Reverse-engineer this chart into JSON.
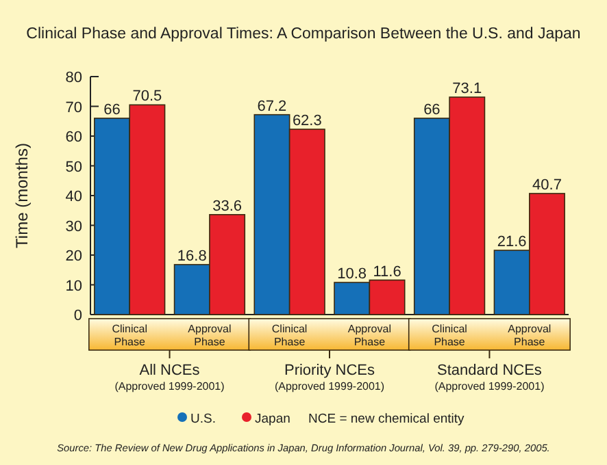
{
  "chart_data": {
    "type": "bar",
    "title": "Clinical Phase and Approval Times: A Comparison Between the U.S. and Japan",
    "ylabel": "Time (months)",
    "categories": [
      "Clinical Phase",
      "Approval Phase",
      "Clinical Phase",
      "Approval Phase",
      "Clinical Phase",
      "Approval Phase"
    ],
    "series": [
      {
        "name": "U.S.",
        "color": "#1570b8",
        "values": [
          66,
          16.8,
          67.2,
          10.8,
          66,
          21.6
        ]
      },
      {
        "name": "Japan",
        "color": "#e8212b",
        "values": [
          70.5,
          33.6,
          62.3,
          11.6,
          73.1,
          40.7
        ]
      }
    ],
    "ylim": [
      0,
      80
    ],
    "yticks": [
      0,
      10,
      20,
      30,
      40,
      50,
      60,
      70,
      80
    ],
    "data_labels": true,
    "legend": "bottom",
    "annotations": [
      "All NCEs",
      "(Approved 1999-2001)",
      "Priority NCEs",
      "(Approved 1999-2001)",
      "Standard NCEs",
      "(Approved 1999-2001)",
      "NCE = new chemical entity",
      "Source: The Review of New Drug Applications in Japan, Drug Information Journal, Vol. 39, pp. 279-290, 2005."
    ]
  }
}
